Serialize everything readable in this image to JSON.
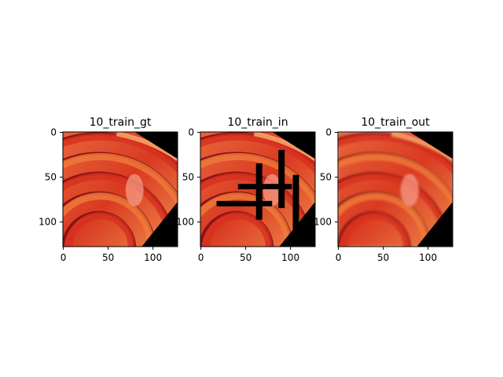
{
  "panels": [
    {
      "title": "10_train_gt",
      "has_corruption": false,
      "has_blur": false,
      "xticks": [
        "0",
        "50",
        "100"
      ],
      "yticks": [
        "0",
        "50",
        "100"
      ]
    },
    {
      "title": "10_train_in",
      "has_corruption": true,
      "has_blur": false,
      "xticks": [
        "0",
        "50",
        "100"
      ],
      "yticks": [
        "0",
        "50",
        "100"
      ]
    },
    {
      "title": "10_train_out",
      "has_corruption": false,
      "has_blur": true,
      "xticks": [
        "0",
        "50",
        "100"
      ],
      "yticks": [
        "0",
        "50",
        "100"
      ]
    }
  ],
  "colors": {
    "background": "#ffffff",
    "flesh_red": "#d6301e",
    "flesh_orange": "#f07a3a",
    "skin_dark": "#8a1414",
    "highlight": "#ffb070",
    "mask_black": "#000000"
  }
}
